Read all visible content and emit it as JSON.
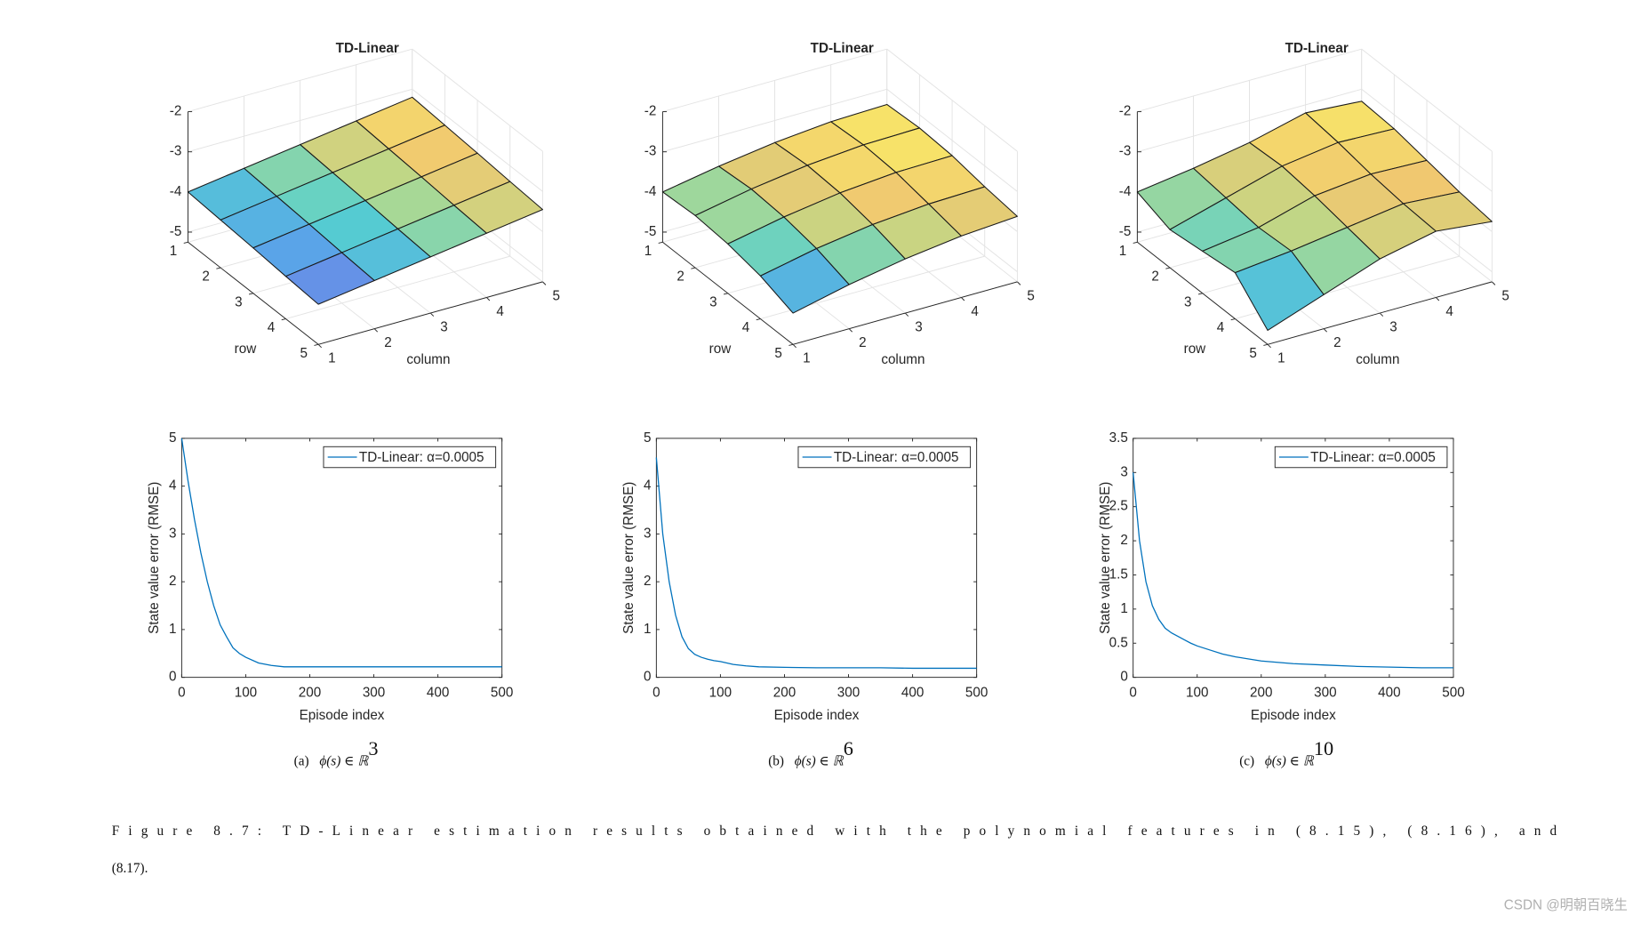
{
  "chart_data": [
    {
      "type": "surface",
      "title": "TD-Linear",
      "xlabel": "column",
      "ylabel": "row",
      "xlim": [
        1,
        5
      ],
      "ylim": [
        1,
        5
      ],
      "zlim": [
        -5.25,
        -2
      ],
      "xticks": [
        1,
        2,
        3,
        4,
        5
      ],
      "yticks": [
        1,
        2,
        3,
        4,
        5
      ],
      "zticks": [
        -5,
        -4,
        -3,
        -2
      ],
      "x": [
        1,
        2,
        3,
        4,
        5
      ],
      "y": [
        1,
        2,
        3,
        4,
        5
      ],
      "colormap": [
        "#7a6ee6",
        "#58a8e8",
        "#55d0cf",
        "#b8d98a",
        "#f0c870",
        "#f8e868"
      ],
      "z": [
        [
          -4.0,
          -3.8,
          -3.6,
          -3.4,
          -3.2
        ],
        [
          -4.06,
          -3.86,
          -3.66,
          -3.46,
          -3.26
        ],
        [
          -4.12,
          -3.92,
          -3.72,
          -3.52,
          -3.32
        ],
        [
          -4.19,
          -3.99,
          -3.79,
          -3.59,
          -3.39
        ],
        [
          -4.25,
          -4.05,
          -3.85,
          -3.65,
          -3.45
        ]
      ]
    },
    {
      "type": "surface",
      "title": "TD-Linear",
      "xlabel": "column",
      "ylabel": "row",
      "xlim": [
        1,
        5
      ],
      "ylim": [
        1,
        5
      ],
      "zlim": [
        -5.25,
        -2
      ],
      "xticks": [
        1,
        2,
        3,
        4,
        5
      ],
      "yticks": [
        1,
        2,
        3,
        4,
        5
      ],
      "zticks": [
        -5,
        -4,
        -3,
        -2
      ],
      "x": [
        1,
        2,
        3,
        4,
        5
      ],
      "y": [
        1,
        2,
        3,
        4,
        5
      ],
      "colormap": [
        "#7a6ee6",
        "#58a8e8",
        "#55d0cf",
        "#b8d98a",
        "#f0c870",
        "#f8e868"
      ],
      "z": [
        [
          -4.0,
          -3.75,
          -3.55,
          -3.42,
          -3.38
        ],
        [
          -3.95,
          -3.68,
          -3.48,
          -3.36,
          -3.33
        ],
        [
          -4.02,
          -3.74,
          -3.53,
          -3.41,
          -3.38
        ],
        [
          -4.18,
          -3.89,
          -3.68,
          -3.56,
          -3.52
        ],
        [
          -4.47,
          -4.15,
          -3.9,
          -3.72,
          -3.62
        ]
      ]
    },
    {
      "type": "surface",
      "title": "TD-Linear",
      "xlabel": "column",
      "ylabel": "row",
      "xlim": [
        1,
        5
      ],
      "ylim": [
        1,
        5
      ],
      "zlim": [
        -5.25,
        -2
      ],
      "xticks": [
        1,
        2,
        3,
        4,
        5
      ],
      "yticks": [
        1,
        2,
        3,
        4,
        5
      ],
      "zticks": [
        -5,
        -4,
        -3,
        -2
      ],
      "x": [
        1,
        2,
        3,
        4,
        5
      ],
      "y": [
        1,
        2,
        3,
        4,
        5
      ],
      "colormap": [
        "#7a6ee6",
        "#58a8e8",
        "#55d0cf",
        "#b8d98a",
        "#f0c870",
        "#f8e868"
      ],
      "z": [
        [
          -4.0,
          -3.8,
          -3.55,
          -3.2,
          -3.3
        ],
        [
          -4.3,
          -3.9,
          -3.5,
          -3.3,
          -3.35
        ],
        [
          -4.2,
          -4.0,
          -3.6,
          -3.45,
          -3.5
        ],
        [
          -4.1,
          -3.95,
          -3.75,
          -3.55,
          -3.65
        ],
        [
          -4.9,
          -4.4,
          -3.9,
          -3.6,
          -3.75
        ]
      ]
    },
    {
      "type": "line",
      "xlabel": "Episode index",
      "ylabel": "State value error (RMSE)",
      "xlim": [
        0,
        500
      ],
      "xticks": [
        0,
        100,
        200,
        300,
        400,
        500
      ],
      "ylim": [
        0,
        5
      ],
      "yticks": [
        0,
        1,
        2,
        3,
        4,
        5
      ],
      "legend": "upper right",
      "x": [
        0,
        10,
        20,
        30,
        40,
        50,
        60,
        70,
        80,
        90,
        100,
        120,
        140,
        160,
        200,
        250,
        300,
        350,
        400,
        450,
        500
      ],
      "series": [
        {
          "name": "TD-Linear: α=0.0005",
          "color": "#0072bd",
          "values": [
            5.0,
            4.1,
            3.3,
            2.6,
            2.0,
            1.5,
            1.1,
            0.85,
            0.62,
            0.5,
            0.42,
            0.3,
            0.25,
            0.22,
            0.22,
            0.22,
            0.22,
            0.22,
            0.22,
            0.22,
            0.22
          ]
        }
      ]
    },
    {
      "type": "line",
      "xlabel": "Episode index",
      "ylabel": "State value error (RMSE)",
      "xlim": [
        0,
        500
      ],
      "xticks": [
        0,
        100,
        200,
        300,
        400,
        500
      ],
      "ylim": [
        0,
        5
      ],
      "yticks": [
        0,
        1,
        2,
        3,
        4,
        5
      ],
      "legend": "upper right",
      "x": [
        0,
        10,
        20,
        30,
        40,
        50,
        60,
        70,
        80,
        90,
        100,
        120,
        140,
        160,
        200,
        250,
        300,
        350,
        400,
        450,
        500
      ],
      "series": [
        {
          "name": "TD-Linear: α=0.0005",
          "color": "#0072bd",
          "values": [
            4.6,
            3.0,
            2.0,
            1.3,
            0.85,
            0.6,
            0.48,
            0.42,
            0.38,
            0.35,
            0.33,
            0.27,
            0.24,
            0.22,
            0.21,
            0.2,
            0.2,
            0.2,
            0.19,
            0.19,
            0.19
          ]
        }
      ]
    },
    {
      "type": "line",
      "xlabel": "Episode index",
      "ylabel": "State value error (RMSE)",
      "xlim": [
        0,
        500
      ],
      "xticks": [
        0,
        100,
        200,
        300,
        400,
        500
      ],
      "ylim": [
        0,
        3.5
      ],
      "yticks": [
        0,
        0.5,
        1,
        1.5,
        2,
        2.5,
        3,
        3.5
      ],
      "legend": "upper right",
      "x": [
        0,
        10,
        20,
        30,
        40,
        50,
        60,
        70,
        80,
        90,
        100,
        120,
        140,
        160,
        200,
        250,
        300,
        350,
        400,
        450,
        500
      ],
      "series": [
        {
          "name": "TD-Linear: α=0.0005",
          "color": "#0072bd",
          "values": [
            3.0,
            2.0,
            1.4,
            1.05,
            0.85,
            0.72,
            0.65,
            0.6,
            0.55,
            0.5,
            0.46,
            0.4,
            0.34,
            0.3,
            0.24,
            0.2,
            0.18,
            0.16,
            0.15,
            0.14,
            0.14
          ]
        }
      ]
    }
  ],
  "captions": [
    {
      "label": "(a)",
      "math": "ϕ(s) ∈ ℝ",
      "sup": "3"
    },
    {
      "label": "(b)",
      "math": "ϕ(s) ∈ ℝ",
      "sup": "6"
    },
    {
      "label": "(c)",
      "math": "ϕ(s) ∈ ℝ",
      "sup": "10"
    }
  ],
  "figure_caption": [
    "Figure 8.7: TD-Linear estimation results obtained with the polynomial features in (8.15), (8.16), and",
    "(8.17)."
  ],
  "watermark": "CSDN @明朝百晓生"
}
